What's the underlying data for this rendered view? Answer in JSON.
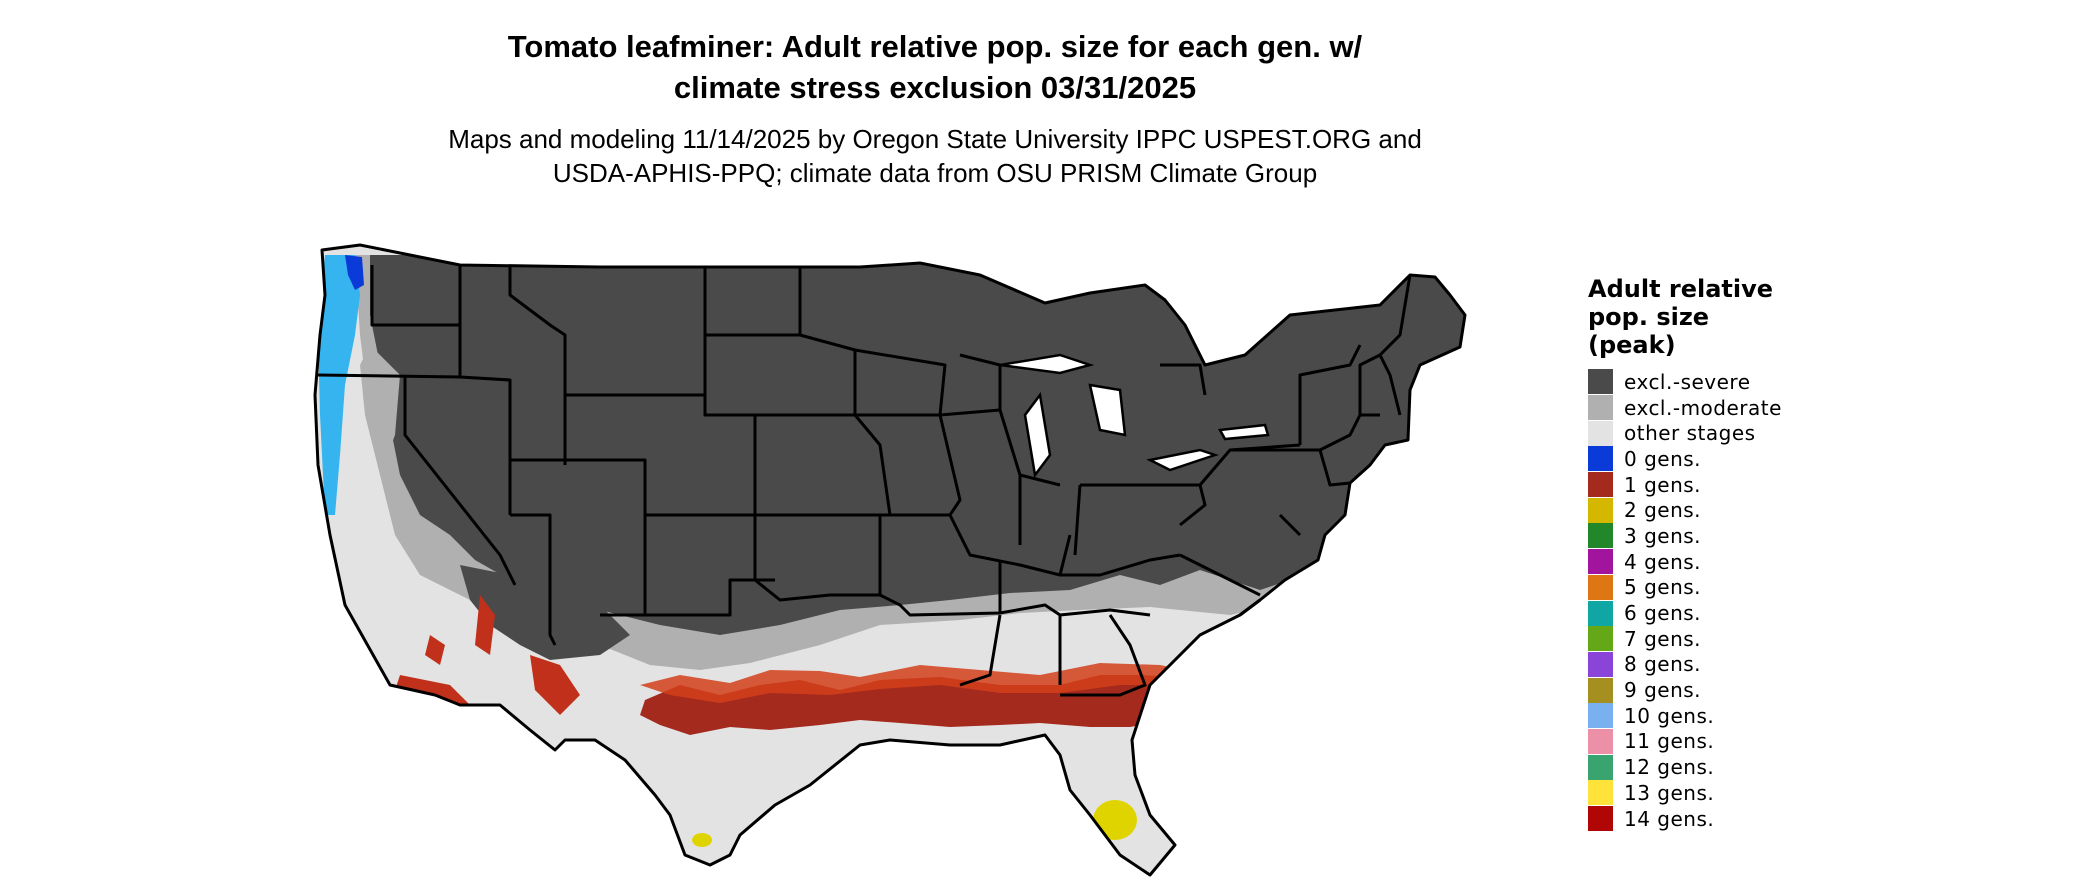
{
  "title_lines": [
    "Tomato leafminer: Adult relative pop. size for each gen. w/",
    "climate stress exclusion 03/31/2025"
  ],
  "subtitle_lines": [
    "Maps and modeling 11/14/2025 by Oregon State University IPPC USPEST.ORG and",
    "USDA-APHIS-PPQ; climate data from OSU PRISM Climate Group"
  ],
  "legend": {
    "title_lines": [
      "Adult relative",
      "pop. size",
      "(peak)"
    ],
    "items": [
      {
        "label": "excl.-severe",
        "color": "#4a4a4a"
      },
      {
        "label": "excl.-moderate",
        "color": "#b0b0b0"
      },
      {
        "label": "other stages",
        "color": "#e3e3e3"
      },
      {
        "label": "0 gens.",
        "color": "#0a3ad8"
      },
      {
        "label": "1 gens.",
        "color": "#a52a1e"
      },
      {
        "label": "2 gens.",
        "color": "#d4b800"
      },
      {
        "label": "3 gens.",
        "color": "#22862a"
      },
      {
        "label": "4 gens.",
        "color": "#a0149e"
      },
      {
        "label": "5 gens.",
        "color": "#dd7714"
      },
      {
        "label": "6 gens.",
        "color": "#10a6a3"
      },
      {
        "label": "7 gens.",
        "color": "#64a818"
      },
      {
        "label": "8 gens.",
        "color": "#8b44d8"
      },
      {
        "label": "9 gens.",
        "color": "#a48f20"
      },
      {
        "label": "10 gens.",
        "color": "#78b0f0"
      },
      {
        "label": "11 gens.",
        "color": "#ec90a8"
      },
      {
        "label": "12 gens.",
        "color": "#3aa470"
      },
      {
        "label": "13 gens.",
        "color": "#ffe23a"
      },
      {
        "label": "14 gens.",
        "color": "#b00606"
      }
    ]
  },
  "map": {
    "colors": {
      "severe": "#4a4a4a",
      "moderate": "#b0b0b0",
      "other": "#e3e3e3",
      "gen1": "#a52a1e",
      "gen1_alt": "#d2401a",
      "gen0": "#0a3ad8",
      "light_blue": "#36b4f0",
      "gen2": "#e0d400",
      "border": "#000000"
    }
  }
}
